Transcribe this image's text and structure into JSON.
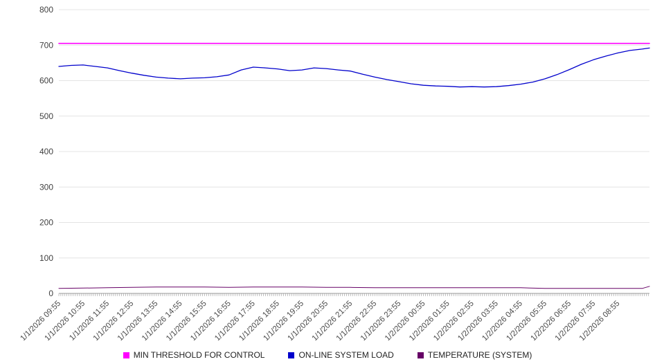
{
  "chart_data": {
    "type": "line",
    "title": "",
    "grid": true,
    "legend_position": "bottom-center",
    "x_range_hours": [
      0,
      24.3
    ],
    "x_axis": {
      "labels": [
        "1/1/2026 09:55",
        "1/1/2026 10:55",
        "1/1/2026 11:55",
        "1/1/2026 12:55",
        "1/1/2026 13:55",
        "1/1/2026 14:55",
        "1/1/2026 15:55",
        "1/1/2026 16:55",
        "1/1/2026 17:55",
        "1/1/2026 18:55",
        "1/1/2026 19:55",
        "1/1/2026 20:55",
        "1/1/2026 21:55",
        "1/1/2026 22:55",
        "1/1/2026 23:55",
        "1/2/2026 00:55",
        "1/2/2026 01:55",
        "1/2/2026 02:55",
        "1/2/2026 03:55",
        "1/2/2026 04:55",
        "1/2/2026 05:55",
        "1/2/2026 06:55",
        "1/2/2026 07:55",
        "1/2/2026 08:55"
      ]
    },
    "y_axis": {
      "min": 0,
      "max": 800,
      "tick_step": 100,
      "ticks": [
        0,
        100,
        200,
        300,
        400,
        500,
        600,
        700,
        800
      ]
    },
    "series": [
      {
        "name": "MIN THRESHOLD FOR CONTROL",
        "color": "#ff00ff",
        "type": "constant",
        "value": 705
      },
      {
        "name": "ON-LINE SYSTEM LOAD",
        "color": "#0000cc",
        "type": "line",
        "x_hours": [
          0,
          0.5,
          1,
          1.5,
          2,
          2.5,
          3,
          3.5,
          4,
          4.5,
          5,
          5.5,
          6,
          6.5,
          7,
          7.5,
          8,
          8.5,
          9,
          9.5,
          10,
          10.5,
          11,
          11.5,
          12,
          12.5,
          13,
          13.5,
          14,
          14.5,
          15,
          15.5,
          16,
          16.5,
          17,
          17.5,
          18,
          18.5,
          19,
          19.5,
          20,
          20.5,
          21,
          21.5,
          22,
          22.5,
          23,
          23.5,
          24,
          24.3
        ],
        "values": [
          640,
          643,
          644,
          640,
          636,
          628,
          621,
          615,
          610,
          607,
          605,
          607,
          608,
          611,
          616,
          630,
          638,
          636,
          633,
          628,
          630,
          636,
          634,
          630,
          627,
          618,
          610,
          603,
          597,
          591,
          587,
          585,
          584,
          582,
          583,
          582,
          583,
          586,
          590,
          596,
          605,
          617,
          631,
          646,
          659,
          669,
          678,
          685,
          689,
          692
        ]
      },
      {
        "name": "TEMPERATURE (SYSTEM)",
        "color": "#660066",
        "type": "line",
        "x_hours": [
          0,
          1,
          2,
          3,
          4,
          5,
          6,
          7,
          8,
          9,
          10,
          11,
          12,
          13,
          14,
          15,
          16,
          17,
          18,
          19,
          20,
          21,
          22,
          23,
          24,
          24.3
        ],
        "values": [
          14,
          15,
          16,
          17,
          18,
          18,
          18,
          17,
          18,
          18,
          18,
          17,
          17,
          16,
          16,
          16,
          16,
          16,
          16,
          16,
          14,
          14,
          14,
          14,
          14,
          20
        ]
      }
    ]
  }
}
